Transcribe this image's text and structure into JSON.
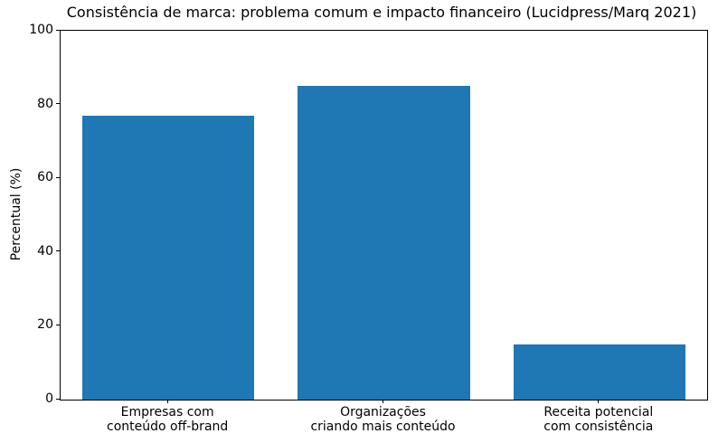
{
  "chart_data": {
    "type": "bar",
    "title": "Consistência de marca: problema comum e impacto financeiro (Lucidpress/Marq 2021)",
    "ylabel": "Percentual (%)",
    "xlabel": "",
    "categories": [
      "Empresas com\nconteúdo off-brand",
      "Organizações\ncriando mais conteúdo",
      "Receita potencial\ncom consistência"
    ],
    "values": [
      77,
      85,
      15
    ],
    "ylim": [
      0,
      100
    ],
    "yticks": [
      0,
      20,
      40,
      60,
      80,
      100
    ],
    "bar_color": "#1f77b4",
    "axis_color": "#000000",
    "background_color": "#ffffff",
    "grid": false,
    "legend": "none",
    "bar_width_fraction": 0.8
  }
}
